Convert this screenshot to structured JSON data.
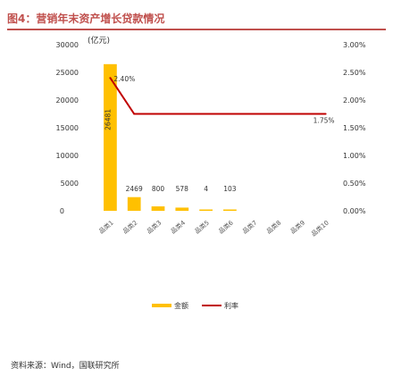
{
  "header": {
    "title": "图4：营销年末资产增长贷款情况"
  },
  "source": "资料来源：Wind，国联研究所",
  "colors": {
    "bar": "#ffc000",
    "line": "#c00000",
    "title": "#c0504d"
  },
  "chart_data": {
    "type": "bar",
    "title": "",
    "y_left_unit": "(亿元)",
    "y_left_ticks": [
      "30000",
      "25000",
      "20000",
      "15000",
      "10000",
      "5000",
      "0"
    ],
    "y_left_range": [
      0,
      30000
    ],
    "y_right_ticks": [
      "3.00%",
      "2.50%",
      "2.00%",
      "1.50%",
      "1.00%",
      "0.50%",
      "0.00%"
    ],
    "y_right_range": [
      0,
      3.0
    ],
    "categories": [
      "品类1",
      "品类2",
      "品类3",
      "品类4",
      "品类5",
      "品类6",
      "品类7",
      "品类8",
      "品类9",
      "品类10"
    ],
    "series": [
      {
        "name": "金额",
        "kind": "bar",
        "axis": "left",
        "values": [
          26481,
          2469,
          800,
          578,
          4,
          103,
          0,
          0,
          0,
          0
        ],
        "labels": [
          "26481",
          "2469",
          "800",
          "578",
          "4",
          "103",
          "",
          "",
          "",
          ""
        ]
      },
      {
        "name": "利率",
        "kind": "line",
        "axis": "right",
        "values": [
          2.4,
          1.75,
          1.75,
          1.75,
          1.75,
          1.75,
          1.75,
          1.75,
          1.75,
          1.75
        ],
        "labels": [
          "2.40%",
          "",
          "",
          "",
          "",
          "",
          "",
          "",
          "",
          "1.75%"
        ]
      }
    ],
    "legend": {
      "placement": "bottom",
      "items": [
        "金额",
        "利率"
      ]
    },
    "grid": false
  }
}
